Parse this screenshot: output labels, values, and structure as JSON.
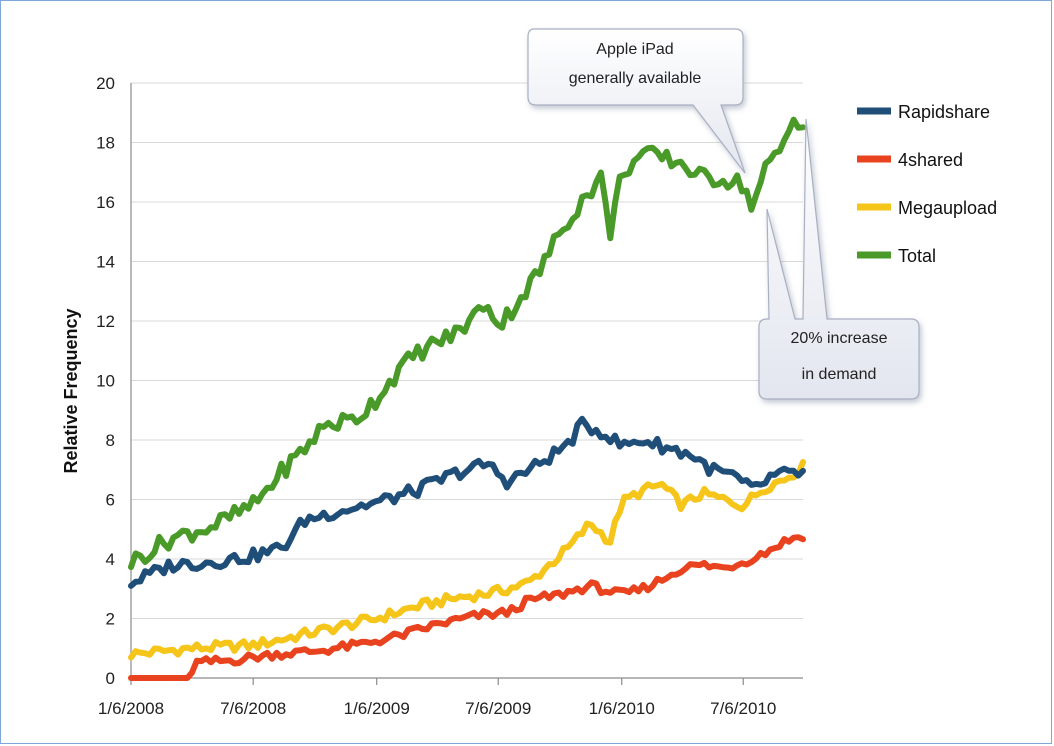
{
  "chart_data": {
    "type": "line",
    "ylabel": "Relative Frequency",
    "ylim": [
      0,
      20
    ],
    "y_ticks": [
      "0",
      "2",
      "4",
      "6",
      "8",
      "10",
      "12",
      "14",
      "16",
      "18",
      "20"
    ],
    "x_ticks": [
      "1/6/2008",
      "7/6/2008",
      "1/6/2009",
      "7/6/2009",
      "1/6/2010",
      "7/6/2010"
    ],
    "x_range": [
      "2008-01-06",
      "2010-10-03"
    ],
    "grid": "horizontal",
    "legend_position": "right",
    "series": [
      {
        "name": "Rapidshare",
        "color": "#1f4e79",
        "points": [
          [
            "2008-01-06",
            3.2
          ],
          [
            "2008-03-06",
            3.8
          ],
          [
            "2008-05-06",
            3.9
          ],
          [
            "2008-07-06",
            4.1
          ],
          [
            "2008-08-20",
            4.4
          ],
          [
            "2008-09-20",
            5.3
          ],
          [
            "2008-11-06",
            5.6
          ],
          [
            "2009-01-06",
            5.9
          ],
          [
            "2009-03-06",
            6.3
          ],
          [
            "2009-05-06",
            6.9
          ],
          [
            "2009-06-20",
            7.2
          ],
          [
            "2009-07-20",
            6.6
          ],
          [
            "2009-09-06",
            7.2
          ],
          [
            "2009-10-20",
            7.9
          ],
          [
            "2009-11-06",
            8.5
          ],
          [
            "2009-12-06",
            8.3
          ],
          [
            "2010-01-06",
            7.8
          ],
          [
            "2010-02-06",
            8.0
          ],
          [
            "2010-03-06",
            7.8
          ],
          [
            "2010-04-20",
            7.5
          ],
          [
            "2010-05-20",
            7.0
          ],
          [
            "2010-06-20",
            6.8
          ],
          [
            "2010-07-20",
            6.3
          ],
          [
            "2010-08-20",
            6.8
          ],
          [
            "2010-10-03",
            6.9
          ]
        ]
      },
      {
        "name": "4shared",
        "color": "#e8431e",
        "points": [
          [
            "2008-01-06",
            0.0
          ],
          [
            "2008-04-01",
            0.0
          ],
          [
            "2008-04-10",
            0.5
          ],
          [
            "2008-06-06",
            0.6
          ],
          [
            "2008-08-06",
            0.8
          ],
          [
            "2008-10-06",
            0.9
          ],
          [
            "2008-12-06",
            1.1
          ],
          [
            "2009-02-06",
            1.4
          ],
          [
            "2009-04-06",
            1.8
          ],
          [
            "2009-06-06",
            2.1
          ],
          [
            "2009-07-20",
            2.2
          ],
          [
            "2009-08-20",
            2.6
          ],
          [
            "2009-10-06",
            2.8
          ],
          [
            "2009-11-20",
            3.1
          ],
          [
            "2010-01-06",
            2.8
          ],
          [
            "2010-02-06",
            3.0
          ],
          [
            "2010-03-06",
            3.3
          ],
          [
            "2010-04-06",
            3.7
          ],
          [
            "2010-05-06",
            3.8
          ],
          [
            "2010-06-06",
            3.7
          ],
          [
            "2010-07-06",
            3.9
          ],
          [
            "2010-08-06",
            4.2
          ],
          [
            "2010-09-06",
            4.6
          ],
          [
            "2010-10-03",
            4.8
          ]
        ]
      },
      {
        "name": "Megaupload",
        "color": "#f5c51a",
        "points": [
          [
            "2008-01-06",
            0.8
          ],
          [
            "2008-04-06",
            1.0
          ],
          [
            "2008-07-06",
            1.1
          ],
          [
            "2008-09-06",
            1.4
          ],
          [
            "2008-11-06",
            1.7
          ],
          [
            "2009-01-06",
            2.0
          ],
          [
            "2009-03-06",
            2.4
          ],
          [
            "2009-05-06",
            2.7
          ],
          [
            "2009-07-06",
            2.9
          ],
          [
            "2009-08-20",
            3.2
          ],
          [
            "2009-09-20",
            3.8
          ],
          [
            "2009-10-20",
            4.4
          ],
          [
            "2009-11-20",
            5.2
          ],
          [
            "2009-12-20",
            4.6
          ],
          [
            "2010-01-06",
            5.9
          ],
          [
            "2010-02-06",
            6.3
          ],
          [
            "2010-03-06",
            6.5
          ],
          [
            "2010-04-06",
            5.8
          ],
          [
            "2010-05-06",
            6.2
          ],
          [
            "2010-06-06",
            6.0
          ],
          [
            "2010-07-06",
            5.8
          ],
          [
            "2010-08-06",
            6.4
          ],
          [
            "2010-09-06",
            6.7
          ],
          [
            "2010-10-03",
            7.1
          ]
        ]
      },
      {
        "name": "Total",
        "color": "#4a9a2a",
        "points": [
          [
            "2008-01-06",
            3.9
          ],
          [
            "2008-03-06",
            4.7
          ],
          [
            "2008-05-06",
            5.1
          ],
          [
            "2008-07-06",
            5.8
          ],
          [
            "2008-08-20",
            7.0
          ],
          [
            "2008-09-20",
            7.7
          ],
          [
            "2008-10-20",
            8.5
          ],
          [
            "2008-12-06",
            8.7
          ],
          [
            "2009-01-06",
            9.4
          ],
          [
            "2009-02-06",
            10.3
          ],
          [
            "2009-03-06",
            10.9
          ],
          [
            "2009-04-06",
            11.3
          ],
          [
            "2009-05-06",
            11.6
          ],
          [
            "2009-06-06",
            12.3
          ],
          [
            "2009-06-20",
            12.7
          ],
          [
            "2009-07-06",
            11.8
          ],
          [
            "2009-08-06",
            12.7
          ],
          [
            "2009-09-06",
            13.7
          ],
          [
            "2009-10-06",
            15.0
          ],
          [
            "2009-11-06",
            16.0
          ],
          [
            "2009-12-06",
            16.8
          ],
          [
            "2009-12-20",
            15.0
          ],
          [
            "2010-01-06",
            17.0
          ],
          [
            "2010-02-06",
            17.6
          ],
          [
            "2010-03-06",
            17.5
          ],
          [
            "2010-04-06",
            17.3
          ],
          [
            "2010-05-06",
            16.8
          ],
          [
            "2010-06-06",
            16.8
          ],
          [
            "2010-07-06",
            16.6
          ],
          [
            "2010-07-20",
            15.8
          ],
          [
            "2010-08-06",
            17.0
          ],
          [
            "2010-09-06",
            18.0
          ],
          [
            "2010-09-20",
            18.9
          ],
          [
            "2010-10-03",
            18.6
          ]
        ]
      }
    ],
    "annotations": [
      {
        "line1": "Apple iPad",
        "line2": "generally available"
      },
      {
        "line1": "20% increase",
        "line2": "in demand"
      }
    ]
  }
}
